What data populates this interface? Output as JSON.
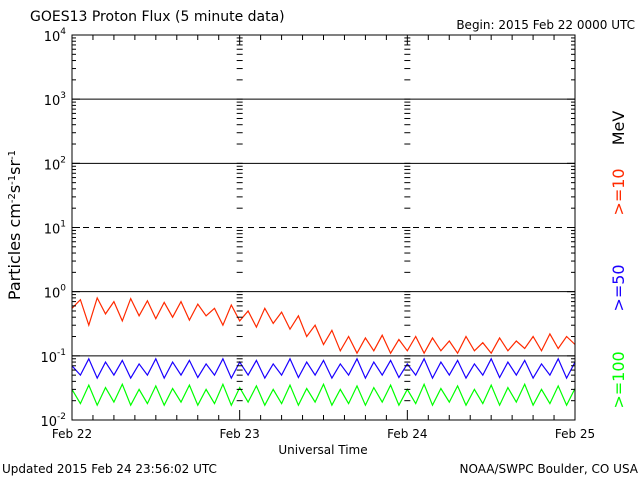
{
  "chart_data": {
    "type": "line",
    "title": "GOES13 Proton Flux (5 minute data)",
    "begin_label": "Begin: 2015 Feb 22 0000 UTC",
    "xlabel": "Universal Time",
    "ylabel": {
      "prefix": "Particles cm",
      "sup1": "-2",
      "mid1": "s",
      "sup2": "-1",
      "mid2": "sr",
      "sup3": "-1"
    },
    "y_scale": "log",
    "ylim": [
      0.01,
      10000
    ],
    "y_ticks": [
      {
        "base": "10",
        "exp": "-2",
        "value": 0.01
      },
      {
        "base": "10",
        "exp": "-1",
        "value": 0.1
      },
      {
        "base": "10",
        "exp": "0",
        "value": 1
      },
      {
        "base": "10",
        "exp": "1",
        "value": 10
      },
      {
        "base": "10",
        "exp": "2",
        "value": 100
      },
      {
        "base": "10",
        "exp": "3",
        "value": 1000
      },
      {
        "base": "10",
        "exp": "4",
        "value": 10000
      }
    ],
    "reference_lines": [
      {
        "value": 0.1,
        "style": "solid"
      },
      {
        "value": 1,
        "style": "solid"
      },
      {
        "value": 10,
        "style": "dashed"
      },
      {
        "value": 100,
        "style": "solid"
      },
      {
        "value": 1000,
        "style": "solid"
      }
    ],
    "x_ticks": [
      "Feb 22",
      "Feb 23",
      "Feb 24",
      "Feb 25"
    ],
    "x_range_days": [
      0,
      3
    ],
    "energy_unit": "MeV",
    "series": [
      {
        "name": ">=10",
        "color": "#ff2a00",
        "x": [
          0,
          0.05,
          0.1,
          0.15,
          0.2,
          0.25,
          0.3,
          0.35,
          0.4,
          0.45,
          0.5,
          0.55,
          0.6,
          0.65,
          0.7,
          0.75,
          0.8,
          0.85,
          0.9,
          0.95,
          1.0,
          1.05,
          1.1,
          1.15,
          1.2,
          1.25,
          1.3,
          1.35,
          1.4,
          1.45,
          1.5,
          1.55,
          1.6,
          1.65,
          1.7,
          1.75,
          1.8,
          1.85,
          1.9,
          1.95,
          2.0,
          2.05,
          2.1,
          2.15,
          2.2,
          2.25,
          2.3,
          2.35,
          2.4,
          2.45,
          2.5,
          2.55,
          2.6,
          2.65,
          2.7,
          2.75,
          2.8,
          2.85,
          2.9,
          2.95,
          3.0
        ],
        "y": [
          0.55,
          0.75,
          0.3,
          0.8,
          0.45,
          0.7,
          0.35,
          0.78,
          0.42,
          0.72,
          0.38,
          0.68,
          0.4,
          0.7,
          0.36,
          0.64,
          0.42,
          0.55,
          0.3,
          0.62,
          0.35,
          0.5,
          0.28,
          0.55,
          0.32,
          0.48,
          0.26,
          0.42,
          0.2,
          0.3,
          0.15,
          0.25,
          0.12,
          0.2,
          0.11,
          0.19,
          0.12,
          0.21,
          0.11,
          0.18,
          0.12,
          0.2,
          0.11,
          0.19,
          0.12,
          0.17,
          0.11,
          0.2,
          0.12,
          0.16,
          0.11,
          0.19,
          0.12,
          0.17,
          0.13,
          0.2,
          0.12,
          0.22,
          0.13,
          0.2,
          0.15
        ]
      },
      {
        "name": ">=50",
        "color": "#1a00ff",
        "x": [
          0,
          0.05,
          0.1,
          0.15,
          0.2,
          0.25,
          0.3,
          0.35,
          0.4,
          0.45,
          0.5,
          0.55,
          0.6,
          0.65,
          0.7,
          0.75,
          0.8,
          0.85,
          0.9,
          0.95,
          1.0,
          1.05,
          1.1,
          1.15,
          1.2,
          1.25,
          1.3,
          1.35,
          1.4,
          1.45,
          1.5,
          1.55,
          1.6,
          1.65,
          1.7,
          1.75,
          1.8,
          1.85,
          1.9,
          1.95,
          2.0,
          2.05,
          2.1,
          2.15,
          2.2,
          2.25,
          2.3,
          2.35,
          2.4,
          2.45,
          2.5,
          2.55,
          2.6,
          2.65,
          2.7,
          2.75,
          2.8,
          2.85,
          2.9,
          2.95,
          3.0
        ],
        "y": [
          0.07,
          0.05,
          0.09,
          0.045,
          0.08,
          0.05,
          0.085,
          0.045,
          0.075,
          0.05,
          0.09,
          0.045,
          0.08,
          0.05,
          0.085,
          0.046,
          0.075,
          0.05,
          0.09,
          0.045,
          0.08,
          0.05,
          0.085,
          0.045,
          0.075,
          0.05,
          0.09,
          0.046,
          0.08,
          0.05,
          0.085,
          0.045,
          0.075,
          0.05,
          0.09,
          0.045,
          0.08,
          0.05,
          0.085,
          0.046,
          0.075,
          0.05,
          0.09,
          0.045,
          0.08,
          0.05,
          0.085,
          0.045,
          0.075,
          0.05,
          0.09,
          0.046,
          0.08,
          0.05,
          0.085,
          0.045,
          0.075,
          0.05,
          0.09,
          0.045,
          0.08
        ]
      },
      {
        "name": ">=100",
        "color": "#00ff00",
        "x": [
          0,
          0.05,
          0.1,
          0.15,
          0.2,
          0.25,
          0.3,
          0.35,
          0.4,
          0.45,
          0.5,
          0.55,
          0.6,
          0.65,
          0.7,
          0.75,
          0.8,
          0.85,
          0.9,
          0.95,
          1.0,
          1.05,
          1.1,
          1.15,
          1.2,
          1.25,
          1.3,
          1.35,
          1.4,
          1.45,
          1.5,
          1.55,
          1.6,
          1.65,
          1.7,
          1.75,
          1.8,
          1.85,
          1.9,
          1.95,
          2.0,
          2.05,
          2.1,
          2.15,
          2.2,
          2.25,
          2.3,
          2.35,
          2.4,
          2.45,
          2.5,
          2.55,
          2.6,
          2.65,
          2.7,
          2.75,
          2.8,
          2.85,
          2.9,
          2.95,
          3.0
        ],
        "y": [
          0.03,
          0.018,
          0.035,
          0.017,
          0.032,
          0.019,
          0.036,
          0.017,
          0.03,
          0.018,
          0.034,
          0.017,
          0.031,
          0.019,
          0.035,
          0.017,
          0.03,
          0.018,
          0.036,
          0.017,
          0.032,
          0.019,
          0.034,
          0.017,
          0.03,
          0.018,
          0.035,
          0.017,
          0.031,
          0.019,
          0.036,
          0.017,
          0.03,
          0.018,
          0.034,
          0.017,
          0.032,
          0.019,
          0.035,
          0.017,
          0.03,
          0.018,
          0.036,
          0.017,
          0.031,
          0.019,
          0.034,
          0.017,
          0.03,
          0.018,
          0.035,
          0.017,
          0.032,
          0.019,
          0.036,
          0.017,
          0.03,
          0.018,
          0.034,
          0.017,
          0.031
        ]
      }
    ],
    "updated": "Updated 2015 Feb 24 23:56:02 UTC",
    "source": "NOAA/SWPC Boulder, CO USA"
  }
}
